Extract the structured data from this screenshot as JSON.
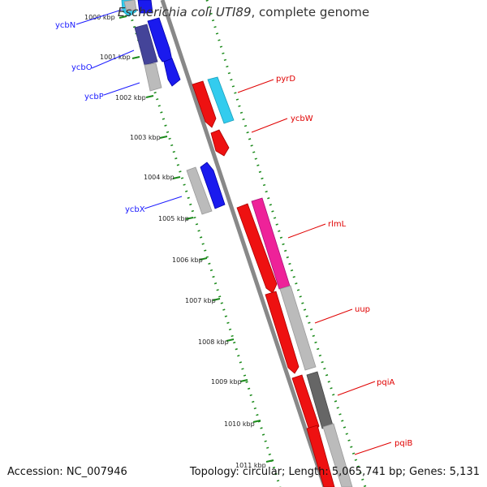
{
  "header": {
    "organism": "Escherichia coli UTI89",
    "description": ", complete genome"
  },
  "footer": {
    "accession_text": "Accession: NC_007946",
    "summary_text": "Topology: circular; Length: 5,065,741 bp; Genes: 5,131"
  },
  "colors": {
    "background": "#ffffff",
    "backbone": "#888888",
    "tick_mark": "#1a8a1a",
    "dotted_guide": "#1a8a1a",
    "forward_label": "#1a1aff",
    "reverse_label": "#e00000",
    "gene_blue": "#1a1aee",
    "gene_dark_blue": "#444499",
    "gene_cyan": "#33ccee",
    "gene_red": "#ee1111",
    "gene_pink": "#ee2299",
    "gene_grey": "#bbbbbb",
    "gene_dark_grey": "#666666"
  },
  "ticks": [
    "1000 kbp",
    "1001 kbp",
    "1002 kbp",
    "1003 kbp",
    "1004 kbp",
    "1005 kbp",
    "1006 kbp",
    "1007 kbp",
    "1008 kbp",
    "1009 kbp",
    "1010 kbp",
    "1011 kbp"
  ],
  "forward_genes": [
    {
      "label": "ycbN"
    },
    {
      "label": "ycbO"
    },
    {
      "label": "ycbP"
    },
    {
      "label": "ycbX"
    }
  ],
  "reverse_genes": [
    {
      "label": "pyrD"
    },
    {
      "label": "ycbW"
    },
    {
      "label": "rlmL"
    },
    {
      "label": "uup"
    },
    {
      "label": "pqiA"
    },
    {
      "label": "pqiB"
    }
  ]
}
